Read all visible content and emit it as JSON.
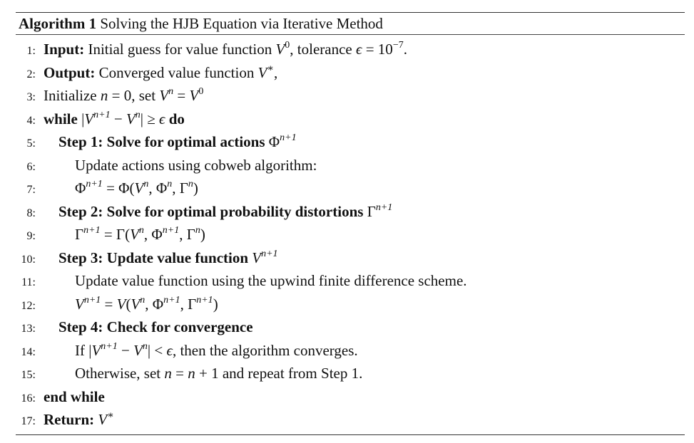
{
  "caption": {
    "label": "Algorithm 1",
    "title": "Solving the HJB Equation via Iterative Method"
  },
  "lines": [
    {
      "num": "1:"
    },
    {
      "num": "2:"
    },
    {
      "num": "3:"
    },
    {
      "num": "4:"
    },
    {
      "num": "5:"
    },
    {
      "num": "6:"
    },
    {
      "num": "7:"
    },
    {
      "num": "8:"
    },
    {
      "num": "9:"
    },
    {
      "num": "10:"
    },
    {
      "num": "11:"
    },
    {
      "num": "12:"
    },
    {
      "num": "13:"
    },
    {
      "num": "14:"
    },
    {
      "num": "15:"
    },
    {
      "num": "16:"
    },
    {
      "num": "17:"
    }
  ],
  "text": {
    "input_kw": "Input:",
    "input_text": "Initial guess for value function",
    "input_tol": ", tolerance",
    "output_kw": "Output:",
    "output_text": "Converged value function",
    "init_text": "Initialize",
    "init_set": ", set",
    "while_kw": "while",
    "do_kw": "do",
    "step1": "Step 1: Solve for optimal actions",
    "step1_sub": "Update actions using cobweb algorithm:",
    "step2": "Step 2: Solve for optimal probability distortions",
    "step3": "Step 3: Update value function",
    "step3_sub": "Update value function using the upwind finite difference scheme.",
    "step4": "Step 4: Check for convergence",
    "if_text": "If",
    "if_then": ", then the algorithm converges.",
    "otherwise": "Otherwise, set",
    "repeat": "and repeat from Step 1.",
    "end_while": "end while",
    "return_kw": "Return:"
  }
}
